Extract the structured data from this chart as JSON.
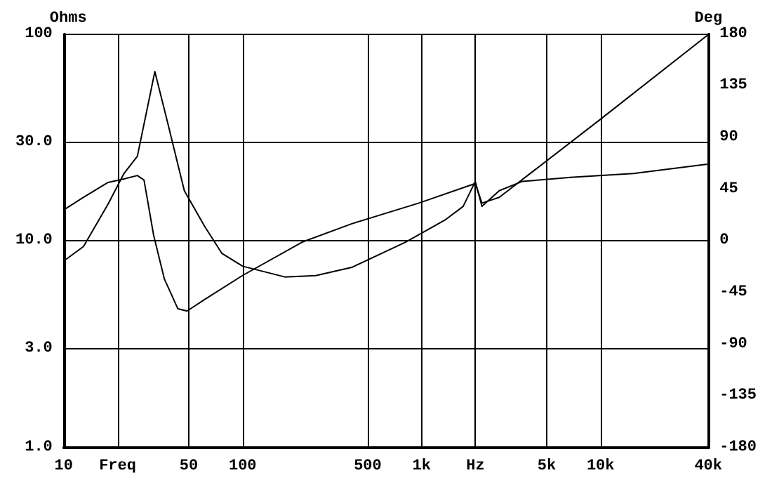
{
  "chart_data": {
    "type": "line",
    "ylabel": "Ohms",
    "y2label": "Deg",
    "log": "xy",
    "grid": true,
    "marker": "none",
    "line_style": "solid",
    "xlim": [
      10,
      40000
    ],
    "xticks": [
      {
        "value": 10,
        "label": "10"
      },
      {
        "value": 20,
        "label": "Freq"
      },
      50,
      100,
      500,
      {
        "value": 1000,
        "label": "1k"
      },
      {
        "value": 2000,
        "label": "Hz"
      },
      {
        "value": 5000,
        "label": "5k"
      },
      {
        "value": 10000,
        "label": "10k"
      },
      {
        "value": 40000,
        "label": "40k"
      }
    ],
    "ylim": [
      1,
      100
    ],
    "yticks": [
      {
        "value": 1,
        "label": "1.0"
      },
      {
        "value": 3,
        "label": "3.0"
      },
      {
        "value": 10,
        "label": "10.0"
      },
      {
        "value": 30,
        "label": "30.0"
      },
      100
    ],
    "y2lim": [
      -180,
      180
    ],
    "y2ticks": [
      -180,
      -135,
      -90,
      -45,
      0,
      45,
      90,
      135,
      180
    ],
    "series": [
      {
        "color": "#000000",
        "x": [
          10,
          12.9,
          17.7,
          21.7,
          25.8,
          32.3,
          37.8,
          47.2,
          61.2,
          76.6,
          100,
          172,
          256,
          407,
          813,
          1365,
          1707,
          1995,
          2174,
          2716,
          3645,
          6776,
          15270,
          39450
        ],
        "values": [
          8.0,
          9.4,
          15.1,
          21.2,
          25.7,
          66,
          38.3,
          17.5,
          11.8,
          8.7,
          7.55,
          6.7,
          6.8,
          7.45,
          9.86,
          12.7,
          14.7,
          19.4,
          14.7,
          17.5,
          19.4,
          20.3,
          21.2,
          23.5
        ]
      },
      {
        "color": "#000000",
        "axis": "y2",
        "x": [
          10,
          12.9,
          17.7,
          21.7,
          25.8,
          28.1,
          31.8,
          36.5,
          43.4,
          48.9,
          61.2,
          100,
          215,
          407,
          966,
          1995,
          2174,
          2716,
          10000,
          39450
        ],
        "values": [
          27,
          38,
          51,
          54,
          57,
          53,
          5,
          -33,
          -59,
          -61,
          -51,
          -30,
          -1,
          15,
          33,
          50,
          33,
          38,
          106,
          179
        ]
      }
    ]
  }
}
